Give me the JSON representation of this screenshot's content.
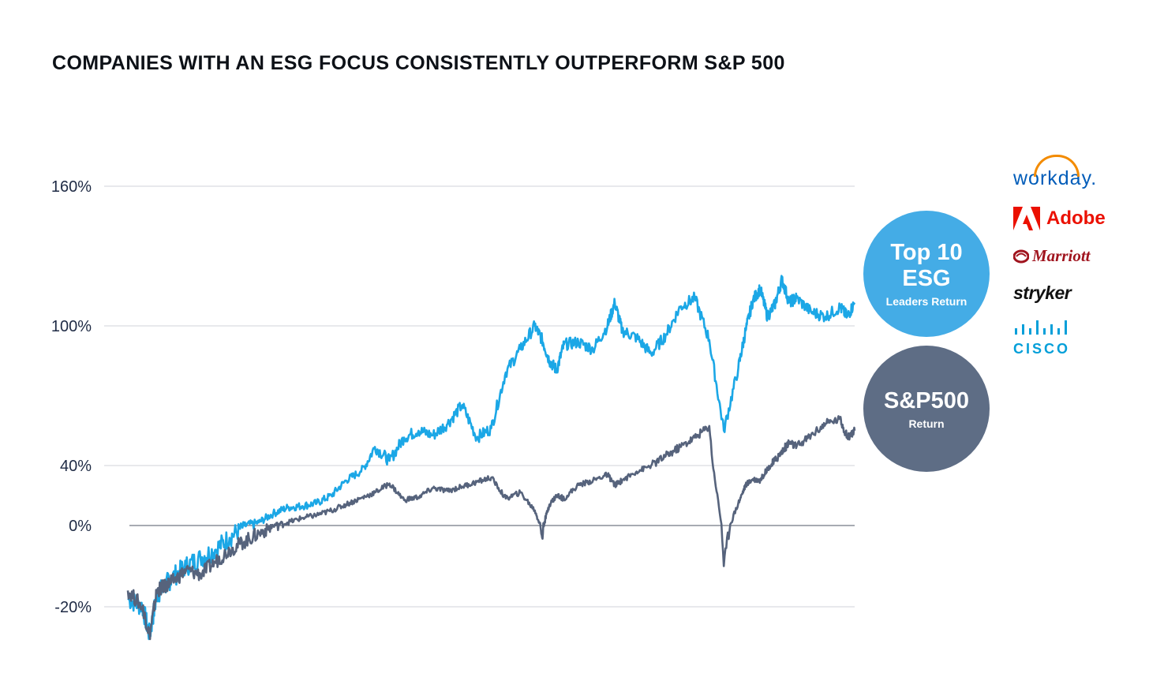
{
  "chart_data": {
    "type": "line",
    "title": "COMPANIES WITH AN ESG FOCUS CONSISTENTLY OUTPERFORM S&P 500",
    "xlabel": "",
    "ylabel": "",
    "y_ticks": [
      {
        "value": 160,
        "label": "160%"
      },
      {
        "value": 100,
        "label": "100%"
      },
      {
        "value": 40,
        "label": "40%"
      },
      {
        "value": 0,
        "label": "0%"
      },
      {
        "value": -20,
        "label": "-20%"
      }
    ],
    "x_range": [
      0,
      100
    ],
    "series": [
      {
        "name": "Top 10 ESG Leaders Return",
        "color": "#1ba7e6",
        "x": [
          0,
          2,
          3,
          4,
          5,
          6,
          8,
          10,
          12,
          14,
          16,
          18,
          20,
          22,
          24,
          26,
          28,
          30,
          32,
          34,
          36,
          38,
          40,
          42,
          44,
          46,
          48,
          50,
          52,
          54,
          56,
          57,
          58,
          59,
          60,
          62,
          64,
          66,
          67,
          68,
          70,
          72,
          74,
          76,
          78,
          80,
          82,
          84,
          85,
          86,
          87,
          88,
          89,
          90,
          91,
          92,
          94,
          96,
          98,
          99,
          100
        ],
        "values": [
          -18,
          -20,
          -27,
          -17,
          -15,
          -13,
          -10,
          -8,
          -6,
          -3,
          0,
          2,
          8,
          12,
          13,
          15,
          20,
          30,
          36,
          48,
          42,
          52,
          55,
          53,
          58,
          66,
          52,
          56,
          80,
          90,
          100,
          94,
          85,
          81,
          92,
          93,
          90,
          100,
          110,
          98,
          95,
          88,
          96,
          108,
          112,
          94,
          55,
          82,
          98,
          111,
          116,
          104,
          109,
          120,
          110,
          112,
          106,
          104,
          108,
          104,
          110
        ]
      },
      {
        "name": "S&P500 Return",
        "color": "#56637c",
        "x": [
          0,
          2,
          3,
          4,
          5,
          6,
          8,
          10,
          12,
          14,
          16,
          18,
          20,
          22,
          24,
          26,
          28,
          30,
          32,
          34,
          36,
          38,
          40,
          42,
          44,
          46,
          48,
          50,
          52,
          54,
          56,
          57,
          58,
          59,
          60,
          62,
          64,
          66,
          67,
          68,
          70,
          72,
          74,
          76,
          78,
          80,
          82,
          84,
          85,
          86,
          87,
          88,
          89,
          90,
          91,
          92,
          94,
          96,
          98,
          99,
          100
        ],
        "values": [
          -16,
          -20,
          -27,
          -16,
          -15,
          -14,
          -11,
          -12,
          -9,
          -6,
          -4,
          -2,
          0,
          2,
          5,
          7,
          10,
          14,
          18,
          22,
          28,
          17,
          19,
          25,
          23,
          26,
          29,
          32,
          18,
          22,
          10,
          -3,
          14,
          20,
          18,
          27,
          30,
          34,
          27,
          30,
          36,
          40,
          44,
          48,
          52,
          57,
          -10,
          15,
          27,
          31,
          30,
          38,
          42,
          46,
          50,
          48,
          53,
          58,
          60,
          52,
          55
        ]
      }
    ],
    "annotations": {
      "esg_bubble": {
        "line1": "Top 10",
        "line2": "ESG",
        "line3": "Leaders Return",
        "color": "#44ace6"
      },
      "sp_bubble": {
        "line1": "S&P500",
        "line2": "Return",
        "color": "#5e6d85"
      }
    },
    "grid": true
  },
  "logos": {
    "workday": "workday.",
    "adobe": "Adobe",
    "marriott": "Marriott",
    "stryker": "stryker",
    "cisco": "CISCO"
  }
}
